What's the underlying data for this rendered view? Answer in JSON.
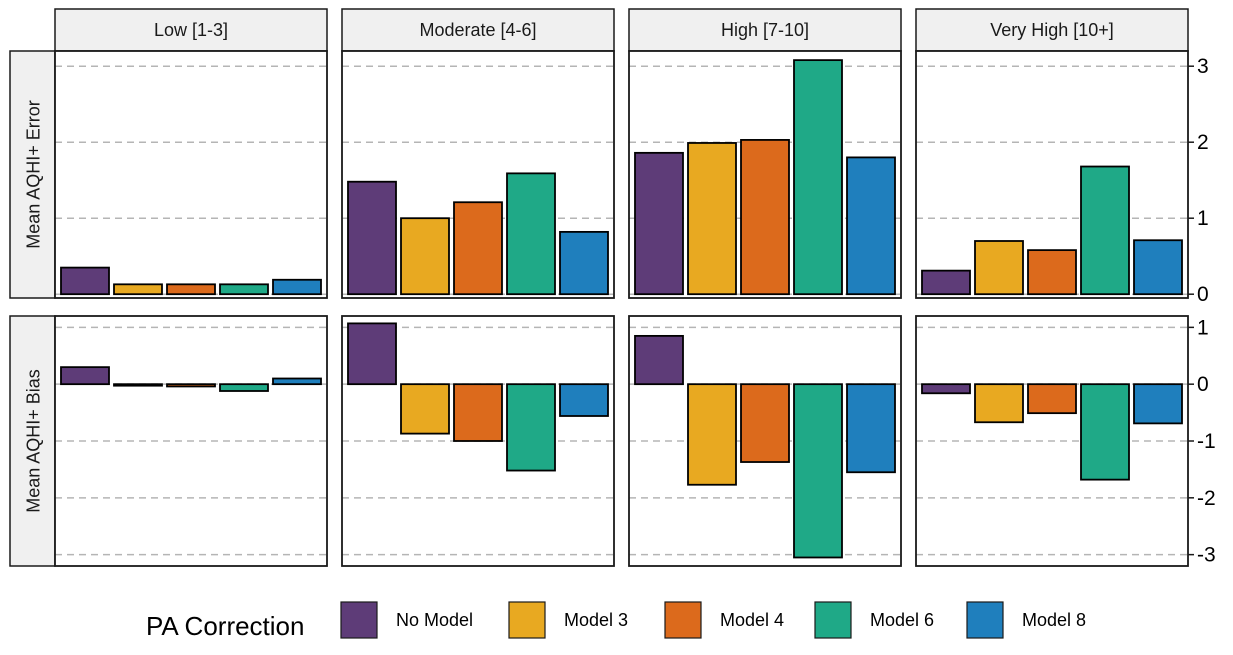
{
  "chart_data": {
    "type": "bar",
    "facet_columns": [
      "Low [1-3]",
      "Moderate [4-6]",
      "High [7-10]",
      "Very High [10+]"
    ],
    "facet_rows": [
      {
        "label": "Mean AQHI+ Error",
        "ylim": [
          -0.05,
          3.2
        ],
        "ticks": [
          0,
          1,
          2,
          3
        ]
      },
      {
        "label": "Mean AQHI+ Bias",
        "ylim": [
          -3.2,
          1.2
        ],
        "ticks": [
          1,
          0,
          -1,
          -2,
          -3
        ]
      }
    ],
    "categories": [
      "No Model",
      "Model 3",
      "Model 4",
      "Model 6",
      "Model 8"
    ],
    "colors": [
      "#5e3c78",
      "#e8a921",
      "#dc6a1c",
      "#1fa987",
      "#1f7fbd"
    ],
    "series": [
      {
        "name": "No Model",
        "error": [
          0.35,
          1.48,
          1.86,
          0.31
        ],
        "bias": [
          0.3,
          1.07,
          0.85,
          -0.16
        ]
      },
      {
        "name": "Model 3",
        "error": [
          0.13,
          1.0,
          1.99,
          0.7
        ],
        "bias": [
          -0.01,
          -0.87,
          -1.77,
          -0.67
        ]
      },
      {
        "name": "Model 4",
        "error": [
          0.13,
          1.21,
          2.03,
          0.58
        ],
        "bias": [
          -0.04,
          -1.0,
          -1.37,
          -0.51
        ]
      },
      {
        "name": "Model 6",
        "error": [
          0.13,
          1.59,
          3.08,
          1.68
        ],
        "bias": [
          -0.12,
          -1.52,
          -3.05,
          -1.68
        ]
      },
      {
        "name": "Model 8",
        "error": [
          0.19,
          0.82,
          1.8,
          0.71
        ],
        "bias": [
          0.1,
          -0.56,
          -1.55,
          -0.69
        ]
      }
    ],
    "grid": "horizontal dashed",
    "y_axis_position": "right",
    "legend": {
      "title": "PA Correction",
      "position": "bottom",
      "entries": [
        "No Model",
        "Model 3",
        "Model 4",
        "Model 6",
        "Model 8"
      ]
    }
  }
}
